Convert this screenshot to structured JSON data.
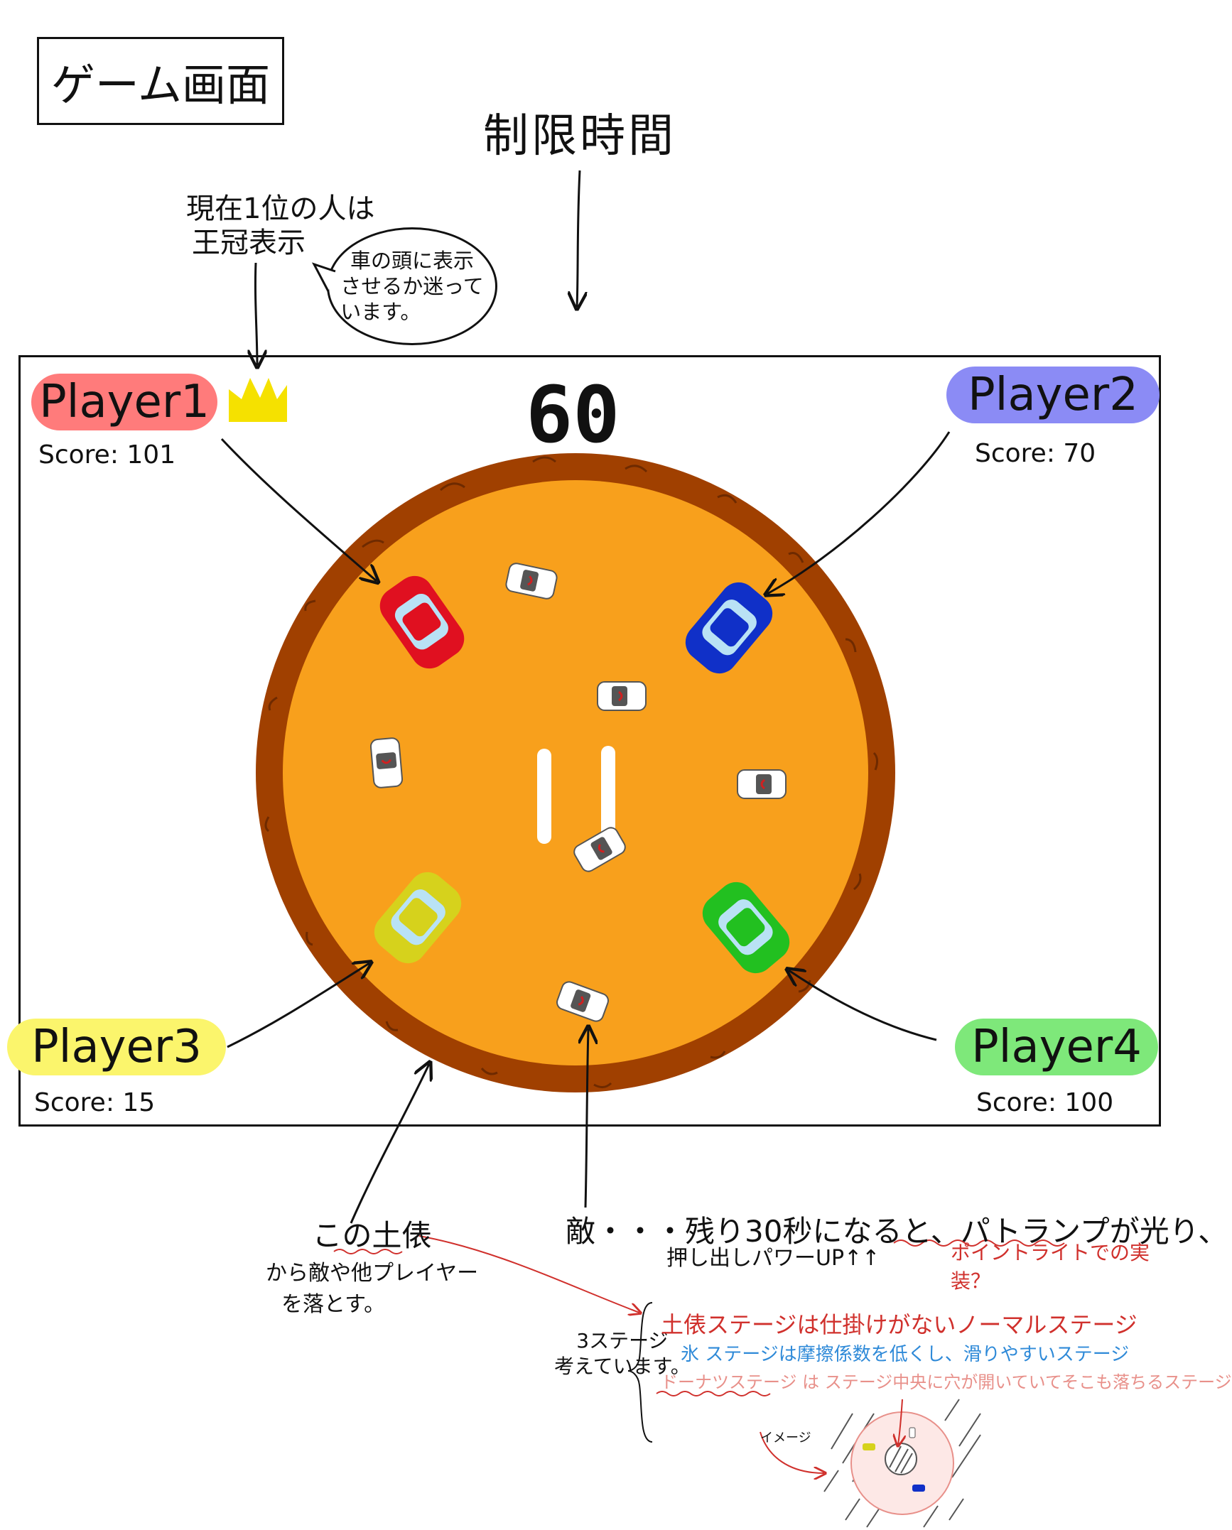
{
  "title": "ゲーム画面",
  "annotations": {
    "time_limit": "制限時間",
    "crown_note_line1": "現在1位の人は",
    "crown_note_line2": "王冠表示",
    "bubble_line1": "車の頭に表示",
    "bubble_line2": "させるか迷って",
    "bubble_line3": "います。",
    "ring_note_line1": "この土俵",
    "ring_note_line2": "から敵や他プレイヤー",
    "ring_note_line3": "を落とす。",
    "enemy_note_main": "敵・・・残り30秒になると、パトランプが光り、",
    "enemy_note_sub": "押し出しパワーUP↑↑",
    "enemy_note_red": "ポイントライトでの実装？",
    "stages_label_line1": "3ステージ",
    "stages_label_line2": "考えています。",
    "stage1": "土俵ステージは仕掛けがないノーマルステージ",
    "stage2": "氷 ステージは摩擦係数を低くし、滑りやすいステージ",
    "stage3": "ドーナツステージ は ステージ中央に穴が開いていてそこも落ちるステージ",
    "image_label": "イメージ"
  },
  "hud": {
    "timer": "60",
    "players": [
      {
        "name": "Player1",
        "score_label": "Score: 101",
        "color": "#ff7b7b",
        "car_color": "#e01020",
        "leader": true
      },
      {
        "name": "Player2",
        "score_label": "Score: 70",
        "color": "#8b8bf5",
        "car_color": "#1030c8",
        "leader": false
      },
      {
        "name": "Player3",
        "score_label": "Score: 15",
        "color": "#fbf56c",
        "car_color": "#d6d21c",
        "leader": false
      },
      {
        "name": "Player4",
        "score_label": "Score: 100",
        "color": "#7ee87a",
        "car_color": "#22c020",
        "leader": false
      }
    ]
  },
  "colors": {
    "ring_outer": "#a04000",
    "ring_inner": "#f8a01c",
    "crown": "#f5e100",
    "red_note": "#d0302c",
    "blue_note": "#2f8ad8",
    "pink_note": "#e8908a"
  }
}
